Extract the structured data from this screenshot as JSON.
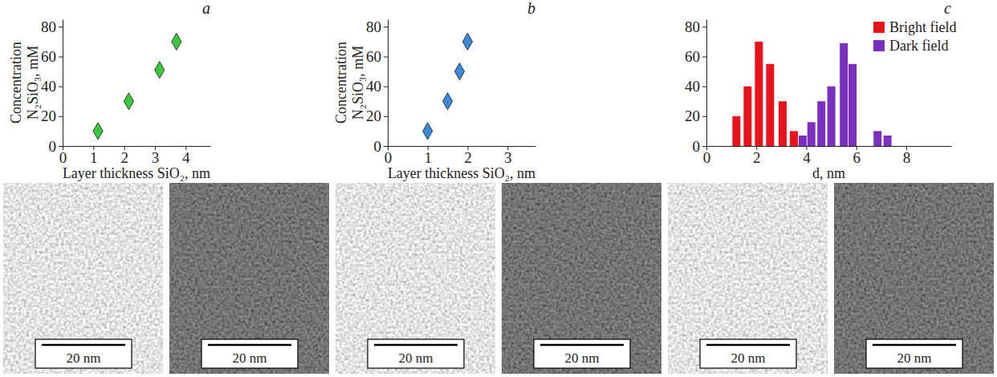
{
  "chart_data": [
    {
      "type": "scatter",
      "title": "a",
      "x": [
        1.15,
        2.15,
        3.15,
        3.7
      ],
      "values": [
        10,
        30,
        51,
        70
      ],
      "color": "#3cc83c",
      "marker": "diamond",
      "xlabel": "Layer thickness SiO₂, nm",
      "ylabel": "Concentration N₂SiO₃, mM",
      "xlim": [
        0,
        4.8
      ],
      "xticks": [
        0,
        1,
        2,
        3,
        4
      ],
      "ylim": [
        0,
        85
      ],
      "yticks": [
        0,
        20,
        40,
        60,
        80
      ],
      "grid": false
    },
    {
      "type": "scatter",
      "title": "b",
      "x": [
        1,
        1.5,
        1.8,
        2
      ],
      "values": [
        10,
        30,
        50,
        70
      ],
      "color": "#3a8ad8",
      "marker": "diamond",
      "xlabel": "Layer thickness SiO₂, nm",
      "ylabel": "Concentration N₂SiO₃, mM",
      "xlim": [
        0,
        3.7
      ],
      "xticks": [
        0,
        1,
        2,
        3
      ],
      "ylim": [
        0,
        85
      ],
      "yticks": [
        0,
        20,
        40,
        60,
        80
      ],
      "grid": false
    },
    {
      "type": "bar",
      "title": "c",
      "xlabel": "d, nm",
      "series": [
        {
          "name": "Bright field",
          "color": "#e8141c",
          "x": [
            1.2,
            1.65,
            2.1,
            2.55,
            3.05,
            3.5
          ],
          "values": [
            20,
            40,
            70,
            55,
            30,
            10
          ]
        },
        {
          "name": "Dark field",
          "color": "#7a2fbf",
          "x": [
            3.85,
            4.2,
            4.6,
            5.0,
            5.5,
            5.85,
            6.85,
            7.25
          ],
          "values": [
            7,
            16,
            30,
            40,
            69,
            55,
            10,
            7
          ]
        }
      ],
      "xlim": [
        0,
        9.8
      ],
      "xticks": [
        0,
        2,
        4,
        6,
        8
      ],
      "ylim": [
        0,
        85
      ],
      "yticks": [
        0,
        20,
        40,
        60,
        80
      ],
      "legend": "upper right",
      "grid": false
    }
  ],
  "images": [
    {
      "scale_bar": "20 nm"
    },
    {
      "scale_bar": "20 nm"
    },
    {
      "scale_bar": "20 nm"
    },
    {
      "scale_bar": "20 nm"
    },
    {
      "scale_bar": "20 nm"
    },
    {
      "scale_bar": "20 nm"
    }
  ]
}
